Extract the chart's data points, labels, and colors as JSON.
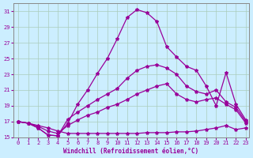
{
  "xlabel": "Windchill (Refroidissement éolien,°C)",
  "background_color": "#cceeff",
  "grid_color": "#aaddcc",
  "line_color": "#990099",
  "xlim": [
    0,
    23
  ],
  "ylim": [
    15,
    32
  ],
  "yticks": [
    15,
    17,
    19,
    21,
    23,
    25,
    27,
    29,
    31
  ],
  "xticks": [
    0,
    1,
    2,
    3,
    4,
    5,
    6,
    7,
    8,
    9,
    10,
    11,
    12,
    13,
    14,
    15,
    16,
    17,
    18,
    19,
    20,
    21,
    22,
    23
  ],
  "series1_x": [
    0,
    1,
    2,
    3,
    4,
    5,
    6,
    7,
    8,
    9,
    10,
    11,
    12,
    13,
    14,
    15,
    16,
    17,
    18,
    19,
    20,
    21,
    22,
    23
  ],
  "series1_y": [
    17.0,
    16.8,
    16.2,
    15.3,
    15.2,
    17.3,
    18.2,
    19.0,
    19.8,
    20.5,
    21.2,
    22.5,
    23.5,
    24.0,
    24.2,
    23.8,
    23.0,
    21.5,
    20.8,
    20.5,
    21.0,
    19.5,
    18.8,
    17.0
  ],
  "series2_x": [
    0,
    1,
    2,
    3,
    4,
    5,
    6,
    7,
    8,
    9,
    10,
    11,
    12,
    13,
    14,
    15,
    16,
    17,
    18,
    19,
    20,
    21,
    22,
    23
  ],
  "series2_y": [
    17.0,
    16.8,
    16.5,
    16.2,
    15.8,
    15.5,
    15.5,
    15.5,
    15.5,
    15.5,
    15.5,
    15.5,
    15.5,
    15.6,
    15.6,
    15.6,
    15.7,
    15.7,
    15.8,
    16.0,
    16.2,
    16.5,
    16.0,
    16.2
  ],
  "series3_x": [
    0,
    1,
    2,
    3,
    4,
    5,
    6,
    7,
    8,
    9,
    10,
    11,
    12,
    13,
    14,
    15,
    16,
    17,
    18,
    19,
    20,
    21,
    22,
    23
  ],
  "series3_y": [
    17.0,
    16.8,
    16.4,
    15.8,
    15.5,
    16.5,
    17.2,
    17.8,
    18.2,
    18.8,
    19.2,
    19.8,
    20.5,
    21.0,
    21.5,
    21.8,
    20.5,
    19.8,
    19.5,
    19.8,
    20.0,
    19.2,
    18.5,
    16.8
  ],
  "series4_x": [
    0,
    1,
    2,
    3,
    4,
    5,
    6,
    7,
    8,
    9,
    10,
    11,
    12,
    13,
    14,
    15,
    16,
    17,
    18,
    19,
    20,
    21,
    22,
    23
  ],
  "series4_y": [
    17.0,
    16.8,
    16.2,
    15.3,
    15.2,
    16.8,
    19.2,
    21.0,
    23.1,
    25.0,
    27.5,
    30.2,
    31.2,
    30.8,
    29.7,
    26.5,
    25.2,
    24.0,
    23.5,
    21.5,
    19.0,
    23.2,
    19.2,
    17.2
  ]
}
